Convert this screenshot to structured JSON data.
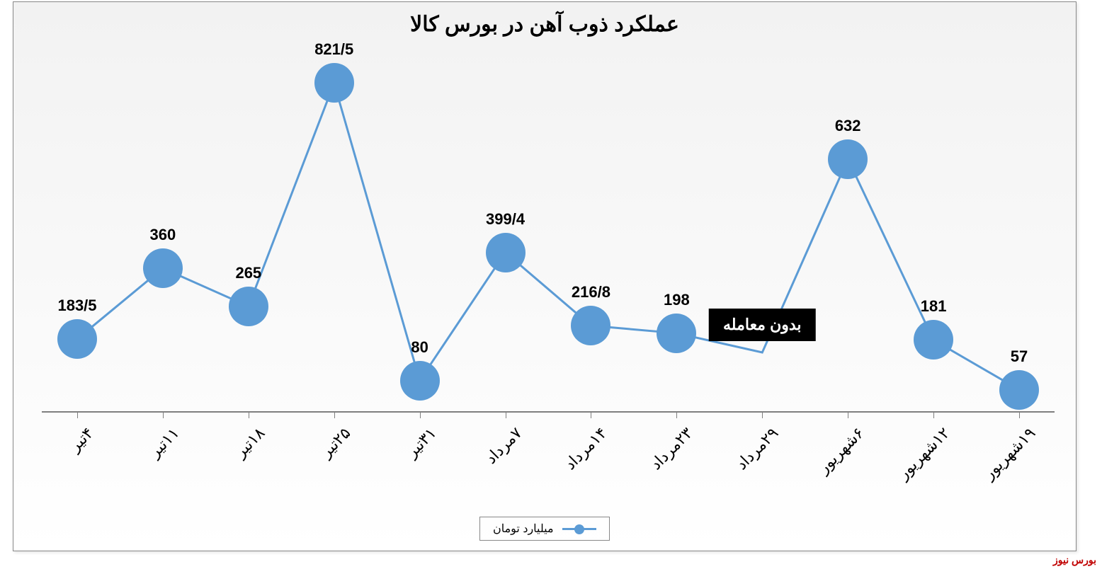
{
  "chart": {
    "type": "line",
    "title": "عملکرد ذوب آهن در بورس کالا",
    "title_fontsize": 30,
    "title_color": "#000000",
    "series_name": "میلیارد تومان",
    "series_color": "#5b9bd5",
    "line_width": 3,
    "marker_radius": 28,
    "no_trade_label": "بدون معامله",
    "label_fontsize": 22,
    "xlabel_fontsize": 22,
    "axis_color": "#7f7f7f",
    "background_gradient_top": "#f2f2f2",
    "background_gradient_bottom": "#ffffff",
    "border_color": "#888888",
    "ylim_max": 900,
    "ylim_min": 0,
    "categories": [
      "۴تیر",
      "۱۱تیر",
      "۱۸تیر",
      "۲۵تیر",
      "۳۱تیر",
      "۷مرداد",
      "۱۴مرداد",
      "۲۳مرداد",
      "۲۹مرداد",
      "۶شهریور",
      "۱۲شهریور",
      "۱۹شهریور"
    ],
    "values": [
      183.5,
      360,
      265,
      821.5,
      80,
      399.4,
      216.8,
      198,
      null,
      632,
      181,
      57
    ],
    "point_labels": [
      "183/5",
      "360",
      "265",
      "821/5",
      "80",
      "399/4",
      "216/8",
      "198",
      "بدون معامله",
      "632",
      "181",
      "57"
    ]
  },
  "attribution": "بورس نیوز"
}
